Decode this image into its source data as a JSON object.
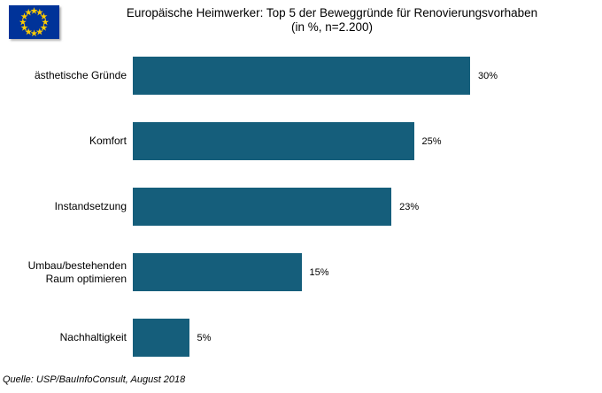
{
  "header": {
    "title_line1": "Europäische Heimwerker: Top 5 der Beweggründe für Renovierungsvorhaben",
    "title_line2": "(in %, n=2.200)"
  },
  "chart_data": {
    "type": "bar",
    "orientation": "horizontal",
    "title": "Europäische Heimwerker: Top 5 der Beweggründe für Renovierungsvorhaben (in %, n=2.200)",
    "categories": [
      "ästhetische Gründe",
      "Komfort",
      "Instandsetzung",
      "Umbau/bestehenden Raum optimieren",
      "Nachhaltigkeit"
    ],
    "values": [
      30,
      25,
      23,
      15,
      5
    ],
    "value_labels": [
      "30%",
      "25%",
      "23%",
      "15%",
      "5%"
    ],
    "unit": "%",
    "sample_size": "n=2.200",
    "xlabel": "",
    "ylabel": "",
    "xlim": [
      0,
      40
    ],
    "grid": false,
    "axes_visible": false,
    "legend": "none",
    "bar_color": "#155E7B"
  },
  "footer": {
    "source": "Quelle: USP/BauInfoConsult, August 2018"
  },
  "colors": {
    "bar": "#155E7B",
    "flag_blue": "#003399",
    "flag_star": "#FFCC00",
    "background": "#FFFFFF",
    "text": "#000000"
  }
}
